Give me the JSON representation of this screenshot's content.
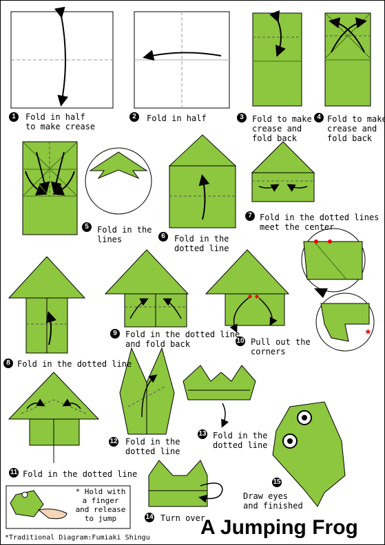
{
  "title": "A Jumping Frog",
  "credit": "*Traditional Diagram:Fumiaki Shingu",
  "note": "* Hold with a finger and release to jump",
  "colors": {
    "paper": "#8DC63F",
    "crease": "#3F6E1A",
    "outline": "#000000"
  },
  "steps": [
    {
      "n": "1",
      "text": "Fold in half\nto make crease"
    },
    {
      "n": "2",
      "text": "Fold in half"
    },
    {
      "n": "3",
      "text": "Fold to make\ncrease and\nfold back"
    },
    {
      "n": "4",
      "text": "Fold to make\ncrease and\nfold back"
    },
    {
      "n": "5",
      "text": "Fold in the\nlines"
    },
    {
      "n": "6",
      "text": "Fold in the\ndotted line"
    },
    {
      "n": "7",
      "text": "Fold in the dotted lines to\nmeet the center"
    },
    {
      "n": "8",
      "text": "Fold in the dotted line"
    },
    {
      "n": "9",
      "text": "Fold in the dotted line\nand fold back"
    },
    {
      "n": "10",
      "text": "Pull out the\ncorners"
    },
    {
      "n": "11",
      "text": "Fold in the dotted line"
    },
    {
      "n": "12",
      "text": "Fold in the\ndotted line"
    },
    {
      "n": "13",
      "text": "Fold in the\ndotted line"
    },
    {
      "n": "14",
      "text": "Turn over"
    },
    {
      "n": "15",
      "text": "Draw eyes\nand finished"
    }
  ]
}
